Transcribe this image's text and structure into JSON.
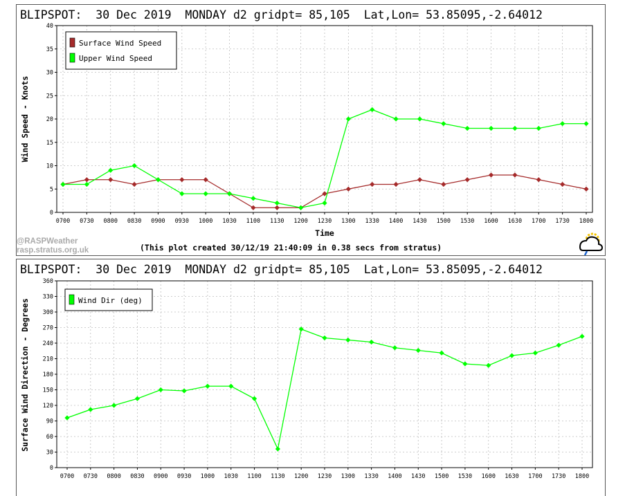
{
  "colors": {
    "surface_wind": "#a52a2a",
    "upper_wind": "#00ff00",
    "wind_dir": "#00ff00"
  },
  "chart_data": [
    {
      "type": "line",
      "title": "BLIPSPOT:  30 Dec 2019  MONDAY d2 gridpt= 85,105  Lat,Lon= 53.85095,-2.64012",
      "xlabel": "Time",
      "ylabel": "Wind Speed - Knots",
      "categories": [
        "0700",
        "0730",
        "0800",
        "0830",
        "0900",
        "0930",
        "1000",
        "1030",
        "1100",
        "1130",
        "1200",
        "1230",
        "1300",
        "1330",
        "1400",
        "1430",
        "1500",
        "1530",
        "1600",
        "1630",
        "1700",
        "1730",
        "1800"
      ],
      "yticks": [
        0,
        5,
        10,
        15,
        20,
        25,
        30,
        35,
        40
      ],
      "ylim": [
        0,
        40
      ],
      "grid": true,
      "legend": "top-left",
      "series": [
        {
          "name": "Surface Wind Speed",
          "values": [
            6,
            7,
            7,
            6,
            7,
            7,
            7,
            4,
            1,
            1,
            1,
            4,
            5,
            6,
            6,
            7,
            6,
            7,
            8,
            8,
            7,
            6,
            5
          ]
        },
        {
          "name": "Upper Wind Speed",
          "values": [
            6,
            6,
            9,
            10,
            7,
            4,
            4,
            4,
            3,
            2,
            1,
            2,
            20,
            22,
            20,
            20,
            19,
            18,
            18,
            18,
            18,
            19,
            19
          ]
        }
      ],
      "credit": "(This plot created 30/12/19 21:40:09 in 0.38 secs from stratus)",
      "watermark": [
        "@RASPWeather",
        "rasp.stratus.org.uk"
      ]
    },
    {
      "type": "line",
      "title": "BLIPSPOT:  30 Dec 2019  MONDAY d2 gridpt= 85,105  Lat,Lon= 53.85095,-2.64012",
      "xlabel": "",
      "ylabel": "Surface Wind Direction - Degrees",
      "categories": [
        "0700",
        "0730",
        "0800",
        "0830",
        "0900",
        "0930",
        "1000",
        "1030",
        "1100",
        "1130",
        "1200",
        "1230",
        "1300",
        "1330",
        "1400",
        "1430",
        "1500",
        "1530",
        "1600",
        "1630",
        "1700",
        "1730",
        "1800"
      ],
      "yticks": [
        0,
        30,
        60,
        90,
        120,
        150,
        180,
        210,
        240,
        270,
        300,
        330,
        360
      ],
      "ylim": [
        0,
        360
      ],
      "grid": true,
      "legend": "top-left",
      "series": [
        {
          "name": "Wind Dir (deg)",
          "values": [
            96,
            112,
            120,
            133,
            150,
            148,
            157,
            157,
            133,
            36,
            267,
            250,
            246,
            242,
            231,
            226,
            221,
            200,
            197,
            216,
            221,
            236,
            253
          ]
        }
      ]
    }
  ]
}
